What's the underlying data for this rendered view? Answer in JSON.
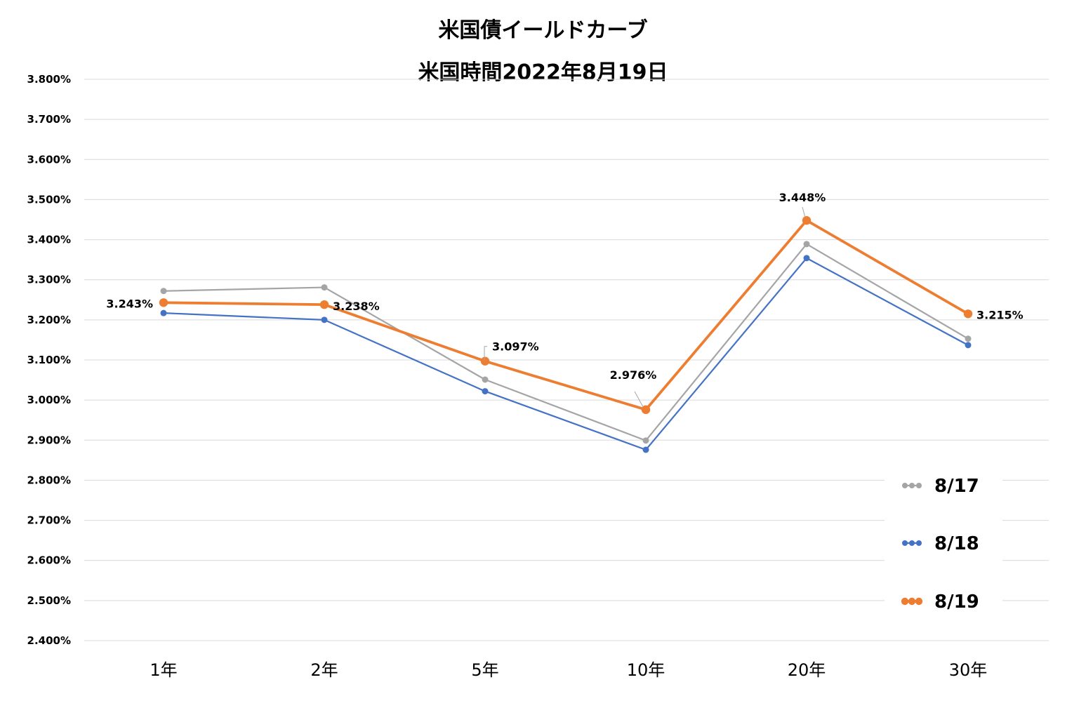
{
  "chart_data": {
    "type": "line",
    "title": "米国債イールドカーブ",
    "subtitle": "米国時間2022年8月19日",
    "categories": [
      "1年",
      "2年",
      "5年",
      "10年",
      "20年",
      "30年"
    ],
    "ylim": [
      2.4,
      3.8
    ],
    "ystep": 0.1,
    "ytick_labels": [
      "3.800%",
      "3.700%",
      "3.600%",
      "3.500%",
      "3.400%",
      "3.300%",
      "3.200%",
      "3.100%",
      "3.000%",
      "2.900%",
      "2.800%",
      "2.700%",
      "2.600%",
      "2.500%",
      "2.400%"
    ],
    "grid": true,
    "legend_position": "bottom-right",
    "series": [
      {
        "name": "8/17",
        "color": "#A5A5A5",
        "values": [
          3.272,
          3.281,
          3.051,
          2.899,
          3.389,
          3.153
        ]
      },
      {
        "name": "8/18",
        "color": "#4472C4",
        "values": [
          3.217,
          3.2,
          3.022,
          2.876,
          3.354,
          3.137
        ]
      },
      {
        "name": "8/19",
        "color": "#ED7D31",
        "values": [
          3.243,
          3.238,
          3.097,
          2.976,
          3.448,
          3.215
        ],
        "data_labels": [
          "3.243%",
          "3.238%",
          "3.097%",
          "2.976%",
          "3.448%",
          "3.215%"
        ]
      }
    ]
  }
}
